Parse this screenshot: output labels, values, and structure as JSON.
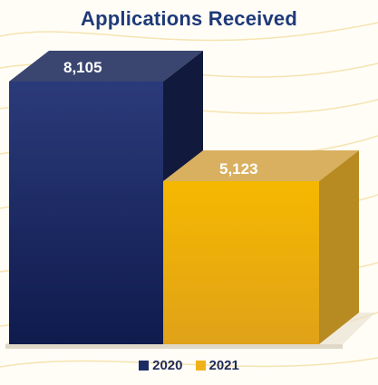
{
  "chart_data": {
    "type": "bar",
    "title": "Applications Received",
    "categories": [
      "2020",
      "2021"
    ],
    "values": [
      8105,
      5123
    ],
    "value_labels": [
      "8,105",
      "5,123"
    ],
    "ylim": [
      0,
      9000
    ],
    "legend": {
      "placement": "bottom-center",
      "entries": [
        {
          "label": "2020",
          "color": "#1c2b63"
        },
        {
          "label": "2021",
          "color": "#f0b21a"
        }
      ]
    },
    "xlabel": "",
    "ylabel": "",
    "grid": false
  },
  "colors": {
    "title": "#1f3a7a",
    "bar_2020_front_top": "#2b3a7a",
    "bar_2020_front_bottom": "#0f1b4d",
    "bar_2020_side": "#111a3d",
    "bar_2020_top": "#3a4570",
    "bar_2021_front_top": "#f5b800",
    "bar_2021_front_bottom": "#e0a218",
    "bar_2021_side": "#b88a22",
    "bar_2021_top": "#d9b060",
    "decor_lines": "#f6e3b0"
  }
}
